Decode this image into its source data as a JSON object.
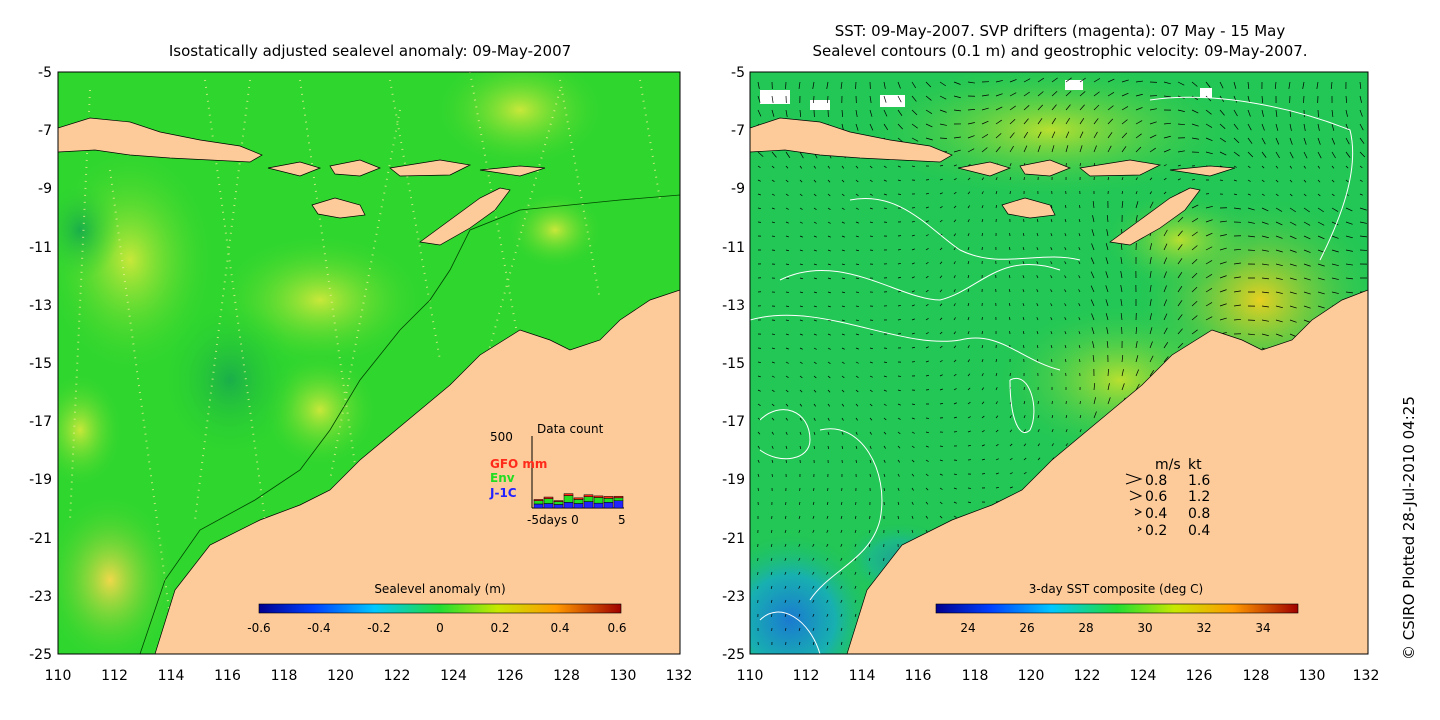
{
  "left_panel": {
    "title": "Isostatically adjusted sealevel anomaly: 09-May-2007",
    "colorbar": {
      "label": "Sealevel anomaly (m)",
      "ticks": [
        "-0.6",
        "-0.4",
        "-0.2",
        "0",
        "0.2",
        "0.4",
        "0.6"
      ]
    },
    "data_count": {
      "title": "Data count",
      "ymax_label": "500",
      "x_label": "-5days 0",
      "x_end_label": "5",
      "legend": [
        {
          "label": "GFO mm",
          "color": "#ff2a1a"
        },
        {
          "label": "Env",
          "color": "#22dd22"
        },
        {
          "label": "J-1C",
          "color": "#2222ff"
        }
      ],
      "bars": [
        {
          "day": -5,
          "j1c": 25,
          "env": 20,
          "gfo": 8
        },
        {
          "day": -4,
          "j1c": 28,
          "env": 30,
          "gfo": 10
        },
        {
          "day": -3,
          "j1c": 22,
          "env": 18,
          "gfo": 6
        },
        {
          "day": -2,
          "j1c": 35,
          "env": 42,
          "gfo": 12
        },
        {
          "day": -1,
          "j1c": 28,
          "env": 25,
          "gfo": 10
        },
        {
          "day": 0,
          "j1c": 40,
          "env": 30,
          "gfo": 12
        },
        {
          "day": 1,
          "j1c": 30,
          "env": 35,
          "gfo": 10
        },
        {
          "day": 2,
          "j1c": 35,
          "env": 25,
          "gfo": 12
        },
        {
          "day": 3,
          "j1c": 45,
          "env": 18,
          "gfo": 10
        }
      ]
    }
  },
  "right_panel": {
    "title_line1": "SST: 09-May-2007. SVP drifters (magenta): 07 May - 15 May",
    "title_line2": "Sealevel contours (0.1 m) and geostrophic velocity: 09-May-2007.",
    "colorbar": {
      "label": "3-day SST composite (deg C)",
      "ticks": [
        "24",
        "26",
        "28",
        "30",
        "32",
        "34"
      ]
    },
    "velocity_legend": {
      "header_ms": "m/s",
      "header_kt": "kt",
      "rows": [
        {
          "ms": "0.8",
          "kt": "1.6"
        },
        {
          "ms": "0.6",
          "kt": "1.2"
        },
        {
          "ms": "0.4",
          "kt": "0.8"
        },
        {
          "ms": "0.2",
          "kt": "0.4"
        }
      ]
    }
  },
  "axes": {
    "x_ticks": [
      "110",
      "112",
      "114",
      "116",
      "118",
      "120",
      "122",
      "124",
      "126",
      "128",
      "130",
      "132"
    ],
    "y_ticks": [
      "-5",
      "-7",
      "-9",
      "-11",
      "-13",
      "-15",
      "-17",
      "-19",
      "-21",
      "-23",
      "-25"
    ]
  },
  "copyright": "© CSIRO Plotted 28-Jul-2010 04:25",
  "colors": {
    "land": "#fdcb9a",
    "sla_base": "#2ed62e",
    "sst_base": "#22c755"
  }
}
